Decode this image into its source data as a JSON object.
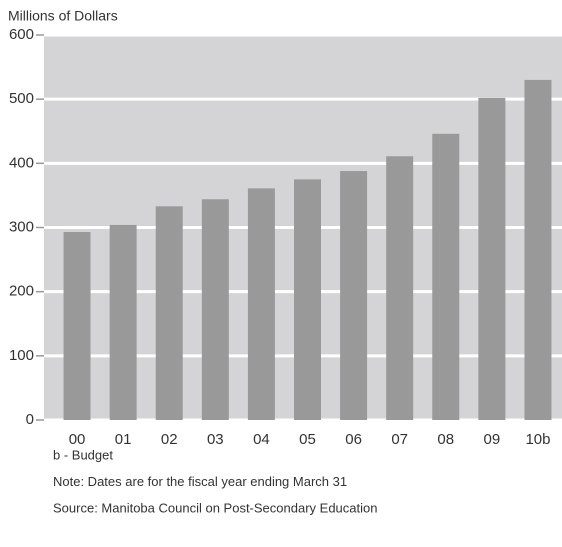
{
  "chart_data": {
    "type": "bar",
    "title": "Millions of Dollars",
    "categories": [
      "00",
      "01",
      "02",
      "03",
      "04",
      "05",
      "06",
      "07",
      "08",
      "09",
      "10b"
    ],
    "values": [
      293,
      304,
      333,
      344,
      361,
      375,
      388,
      411,
      446,
      502,
      530
    ],
    "color": "#999999",
    "background": "#d4d4d6",
    "ylim": [
      0,
      600
    ],
    "yticks": [
      0,
      100,
      200,
      300,
      400,
      500,
      600
    ],
    "grid": true,
    "notes": [
      "b - Budget",
      "Note: Dates are for the fiscal year ending March 31",
      "Source:  Manitoba Council on Post-Secondary Education"
    ]
  }
}
